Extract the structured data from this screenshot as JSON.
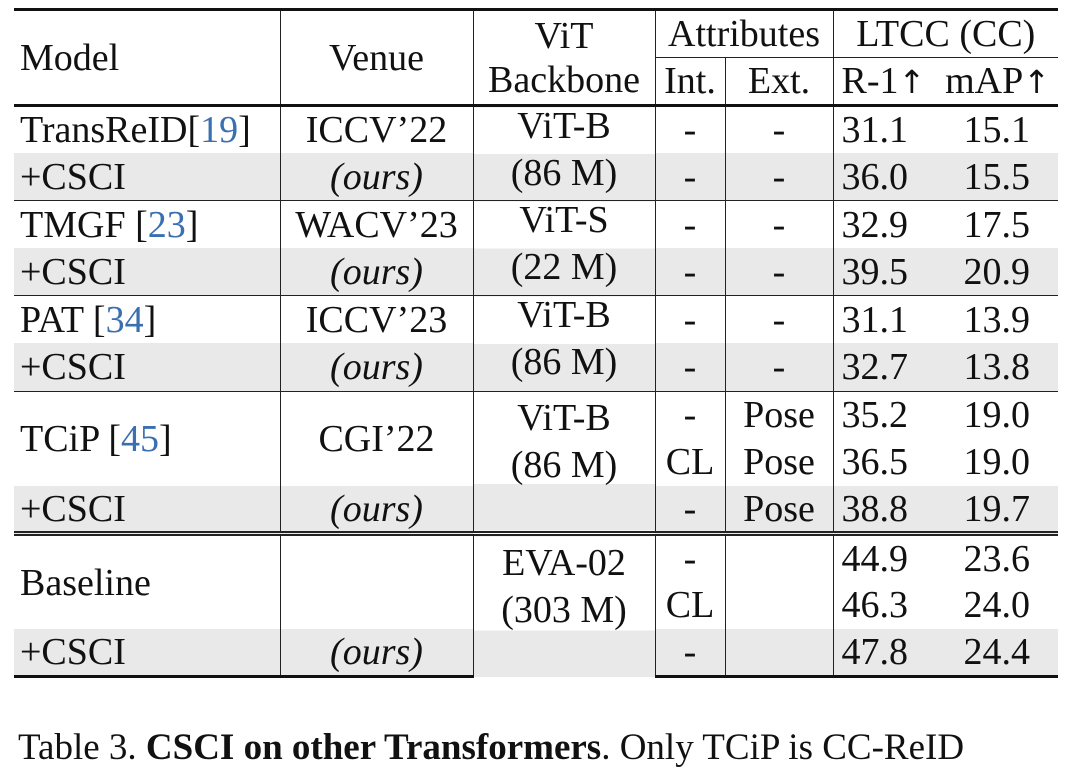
{
  "header": {
    "model": "Model",
    "venue": "Venue",
    "backbone_line1": "ViT",
    "backbone_line2": "Backbone",
    "attributes": "Attributes",
    "int": "Int.",
    "ext": "Ext.",
    "ltcc": "LTCC (CC)",
    "r1": "R-1",
    "map": "mAP",
    "up_arrow": "↑"
  },
  "groups": {
    "transreid": {
      "model": "TransReID[",
      "cite": "19",
      "close": "]",
      "venue": "ICCV’22",
      "bb1": "ViT-B",
      "bb2": "(86 M)",
      "rows": [
        {
          "int": "-",
          "ext": "-",
          "r1": "31.1",
          "map": "15.1"
        },
        {
          "int": "-",
          "ext": "-",
          "r1": "36.0",
          "map": "15.5"
        }
      ]
    },
    "tmgf": {
      "model": "TMGF [",
      "cite": "23",
      "close": "]",
      "venue": "WACV’23",
      "bb1": "ViT-S",
      "bb2": "(22 M)",
      "rows": [
        {
          "int": "-",
          "ext": "-",
          "r1": "32.9",
          "map": "17.5"
        },
        {
          "int": "-",
          "ext": "-",
          "r1": "39.5",
          "map": "20.9"
        }
      ]
    },
    "pat": {
      "model": "PAT [",
      "cite": "34",
      "close": "]",
      "venue": "ICCV’23",
      "bb1": "ViT-B",
      "bb2": "(86 M)",
      "rows": [
        {
          "int": "-",
          "ext": "-",
          "r1": "31.1",
          "map": "13.9"
        },
        {
          "int": "-",
          "ext": "-",
          "r1": "32.7",
          "map": "13.8"
        }
      ]
    },
    "tcip": {
      "model": "TCiP [",
      "cite": "45",
      "close": "]",
      "venue": "CGI’22",
      "bb1": "ViT-B",
      "bb2": "(86 M)",
      "rows": [
        {
          "int": "-",
          "ext": "Pose",
          "r1": "35.2",
          "map": "19.0"
        },
        {
          "int": "CL",
          "ext": "Pose",
          "r1": "36.5",
          "map": "19.0"
        },
        {
          "int": "-",
          "ext": "Pose",
          "r1": "38.8",
          "map": "19.7"
        }
      ]
    },
    "baseline": {
      "model": "Baseline",
      "venue": "",
      "bb1": "EVA-02",
      "bb2": "(303 M)",
      "rows": [
        {
          "int": "-",
          "ext": "",
          "r1": "44.9",
          "map": "23.6"
        },
        {
          "int": "CL",
          "ext": "",
          "r1": "46.3",
          "map": "24.0"
        },
        {
          "int": "-",
          "ext": "",
          "r1": "47.8",
          "map": "24.4"
        }
      ]
    }
  },
  "csci": {
    "model": "+CSCI",
    "venue": "(ours)"
  },
  "caption": {
    "prefix": "Table 3. ",
    "bold": "CSCI on other Transformers",
    "rest": ". Only TCiP is CC-ReID"
  },
  "colors": {
    "shade": "#e9e9e9",
    "citation": "#3a6fb0",
    "rule": "#111111"
  }
}
